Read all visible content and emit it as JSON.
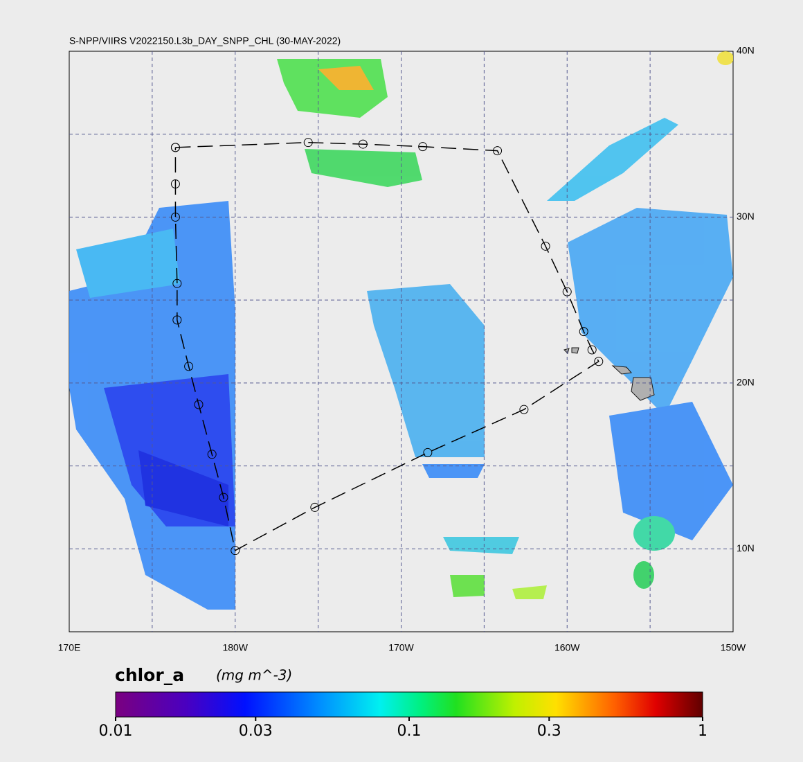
{
  "title": "S-NPP/VIIRS V2022150.L3b_DAY_SNPP_CHL (30-MAY-2022)",
  "map": {
    "lon_range": [
      170,
      210
    ],
    "lat_range": [
      5,
      40
    ],
    "lon_ticks": [
      {
        "value": 170,
        "label": "170E"
      },
      {
        "value": 180,
        "label": "180W"
      },
      {
        "value": 190,
        "label": "170W"
      },
      {
        "value": 200,
        "label": "160W"
      },
      {
        "value": 210,
        "label": "150W"
      }
    ],
    "lat_ticks": [
      {
        "value": 10,
        "label": "10N"
      },
      {
        "value": 20,
        "label": "20N"
      },
      {
        "value": 30,
        "label": "30N"
      },
      {
        "value": 40,
        "label": "40N"
      }
    ],
    "lon_gridlines": [
      175,
      180,
      185,
      190,
      195,
      200,
      205
    ],
    "lat_gridlines": [
      10,
      15,
      20,
      25,
      30,
      35
    ],
    "track": {
      "lon": [
        176.4,
        184.4,
        187.7,
        191.3,
        195.8,
        198.7,
        200.0,
        201.0,
        201.5,
        201.9,
        197.4,
        191.6,
        184.8,
        180.0,
        179.3,
        178.6,
        177.8,
        177.2,
        176.5,
        176.5,
        176.4,
        176.4,
        176.4
      ],
      "lat": [
        34.2,
        34.5,
        34.4,
        34.25,
        34.0,
        28.25,
        25.5,
        23.1,
        22.0,
        21.3,
        18.4,
        15.8,
        12.5,
        9.9,
        13.1,
        15.7,
        18.7,
        21.0,
        23.8,
        26.0,
        30.0,
        32.0,
        34.2
      ]
    }
  },
  "colorbar": {
    "variable": "chlor_a",
    "units": "(mg m^-3)",
    "scale": "log",
    "ticks": [
      0.01,
      0.03,
      0.1,
      0.3,
      1
    ]
  }
}
